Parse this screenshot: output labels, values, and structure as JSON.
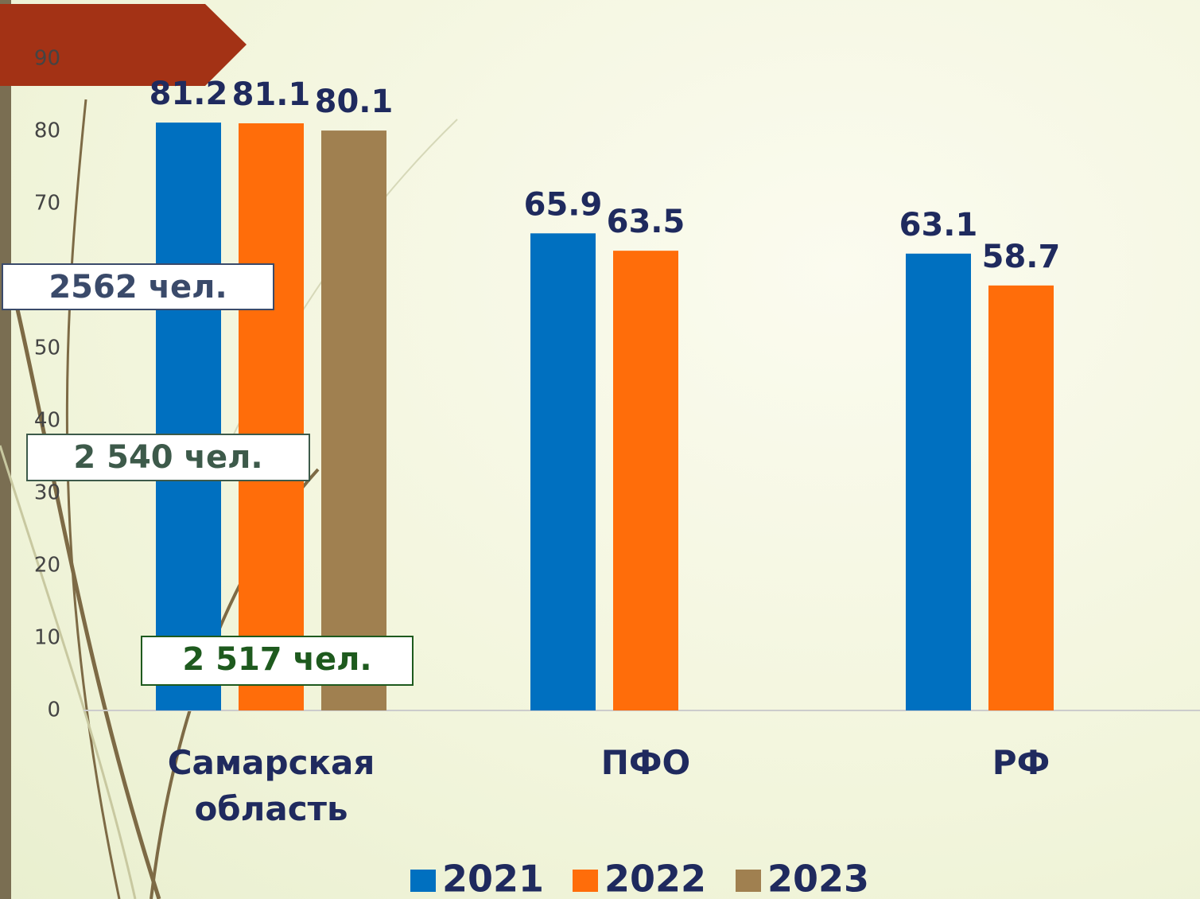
{
  "chart_data": {
    "type": "bar",
    "categories": [
      "Самарская область",
      "ПФО",
      "РФ"
    ],
    "series": [
      {
        "name": "2021",
        "color": "#0070c0",
        "values": [
          81.2,
          65.9,
          63.1
        ]
      },
      {
        "name": "2022",
        "color": "#ff6d0a",
        "values": [
          81.1,
          63.5,
          58.7
        ]
      },
      {
        "name": "2023",
        "color": "#a08050",
        "values": [
          80.1,
          null,
          null
        ]
      }
    ],
    "ylim": [
      0,
      90
    ],
    "yticks": [
      0,
      10,
      20,
      30,
      40,
      50,
      60,
      70,
      80,
      90
    ],
    "annotations": [
      "2562 чел.",
      "2 540 чел.",
      "2 517 чел."
    ],
    "legend": "bottom"
  }
}
